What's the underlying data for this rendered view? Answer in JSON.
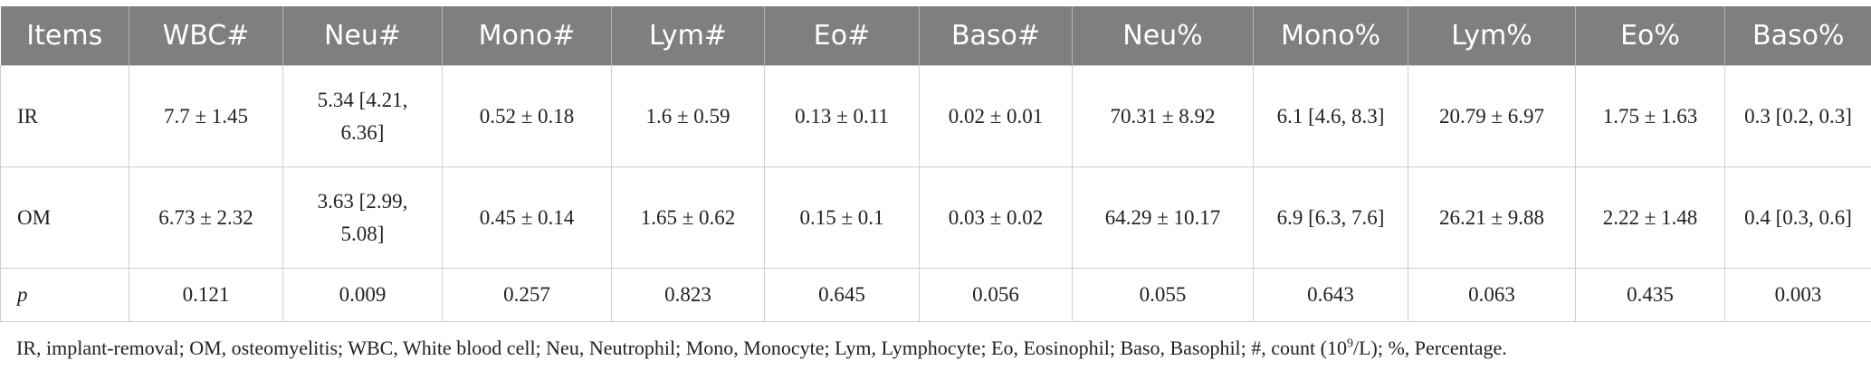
{
  "table": {
    "header": [
      "Items",
      "WBC#",
      "Neu#",
      "Mono#",
      "Lym#",
      "Eo#",
      "Baso#",
      "Neu%",
      "Mono%",
      "Lym%",
      "Eo%",
      "Baso%"
    ],
    "rows": [
      [
        "IR",
        "7.7 ± 1.45",
        "5.34 [4.21, 6.36]",
        "0.52 ± 0.18",
        "1.6 ± 0.59",
        "0.13 ± 0.11",
        "0.02 ± 0.01",
        "70.31 ± 8.92",
        "6.1 [4.6, 8.3]",
        "20.79 ± 6.97",
        "1.75 ± 1.63",
        "0.3 [0.2, 0.3]"
      ],
      [
        "OM",
        "6.73 ± 2.32",
        "3.63 [2.99, 5.08]",
        "0.45 ± 0.14",
        "1.65 ± 0.62",
        "0.15 ± 0.1",
        "0.03 ± 0.02",
        "64.29 ± 10.17",
        "6.9 [6.3, 7.6]",
        "26.21 ± 9.88",
        "2.22 ± 1.48",
        "0.4 [0.3, 0.6]"
      ],
      [
        "p",
        "0.121",
        "0.009",
        "0.257",
        "0.823",
        "0.645",
        "0.056",
        "0.055",
        "0.643",
        "0.063",
        "0.435",
        "0.003"
      ]
    ]
  },
  "footnote": {
    "before": "IR, implant-removal; OM, osteomyelitis; WBC, White blood cell; Neu, Neutrophil; Mono, Monocyte; Lym, Lymphocyte; Eo, Eosinophil; Baso, Basophil; #, count (10",
    "sup": "9",
    "after": "/L); %, Percentage."
  }
}
